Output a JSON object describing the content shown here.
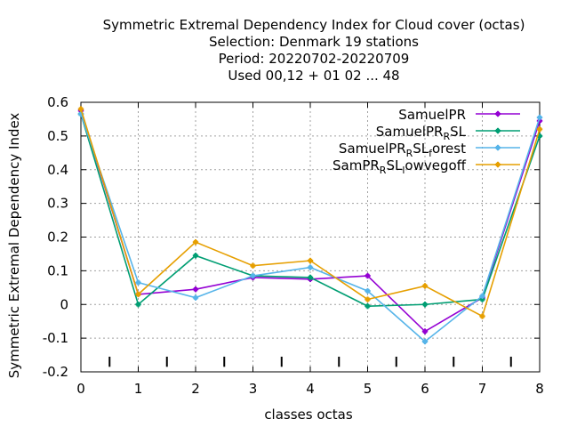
{
  "chart_data": {
    "type": "line",
    "title_lines": [
      "Symmetric Extremal Dependency Index  for Cloud cover (octas)",
      "Selection: Denmark     19 stations",
      "Period: 20220702-20220709",
      "Used  00,12  + 01 02 ... 48"
    ],
    "xlabel": "classes octas",
    "ylabel": "Symmetric Extremal Dependency Index",
    "x": [
      0,
      1,
      2,
      3,
      4,
      5,
      6,
      7,
      8
    ],
    "xlim": [
      0,
      8
    ],
    "ylim": [
      -0.2,
      0.6
    ],
    "x_ticks": [
      "0",
      "1",
      "2",
      "3",
      "4",
      "5",
      "6",
      "7",
      "8"
    ],
    "y_ticks": [
      "-0.2",
      "-0.1",
      "0",
      "0.1",
      "0.2",
      "0.3",
      "0.4",
      "0.5",
      "0.6"
    ],
    "grid": true,
    "legend_position": "top-right",
    "series": [
      {
        "name": "SamuelPR",
        "color": "#9400d3",
        "values": [
          0.575,
          0.03,
          0.045,
          0.08,
          0.075,
          0.085,
          -0.08,
          0.02,
          0.545
        ]
      },
      {
        "name": "SamuelPR_RSL",
        "color": "#009e73",
        "values": [
          0.565,
          0.0,
          0.145,
          0.085,
          0.08,
          -0.005,
          0.0,
          0.015,
          0.5
        ]
      },
      {
        "name": "SamuelPR_RSL_forest",
        "color": "#56b4e9",
        "values": [
          0.565,
          0.065,
          0.02,
          0.085,
          0.11,
          0.04,
          -0.11,
          0.025,
          0.555
        ]
      },
      {
        "name": "SamPR_RSL_lowvegoff",
        "color": "#e69f00",
        "values": [
          0.58,
          0.03,
          0.185,
          0.115,
          0.13,
          0.015,
          0.055,
          -0.035,
          0.52
        ]
      }
    ]
  }
}
